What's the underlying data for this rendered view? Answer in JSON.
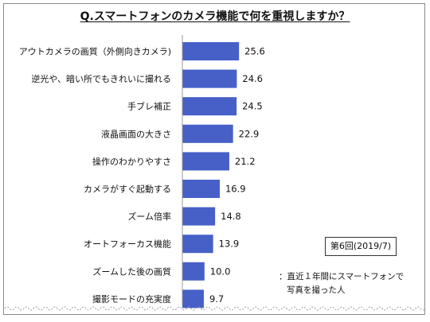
{
  "title": "Q.スマートフォンのカメラ機能で何を重視しますか？",
  "round_label": "第6回(2019/7)",
  "note": {
    "line1": "：直近１年間にスマートフォンで",
    "line2": "写真を撮った人"
  },
  "colors": {
    "bar": "#4660c8",
    "axis": "#9a9a9a",
    "frame": "#8a8a8a"
  },
  "chart_data": {
    "type": "bar",
    "orientation": "horizontal",
    "categories": [
      "アウトカメラの画質（外側向きカメラ)",
      "逆光や、暗い所でもきれいに撮れる",
      "手ブレ補正",
      "液晶画面の大きさ",
      "操作のわかりやすさ",
      "カメラがすぐ起動する",
      "ズーム倍率",
      "オートフォーカス機能",
      "ズームした後の画質",
      "撮影モードの充実度"
    ],
    "values": [
      25.6,
      24.6,
      24.5,
      22.9,
      21.2,
      16.9,
      14.8,
      13.9,
      10.0,
      9.7
    ],
    "value_labels": [
      "25.6",
      "24.6",
      "24.5",
      "22.9",
      "21.2",
      "16.9",
      "14.8",
      "13.9",
      "10.0",
      "9.7"
    ],
    "xlim": [
      0,
      100
    ],
    "grid": false,
    "legend": "none"
  }
}
